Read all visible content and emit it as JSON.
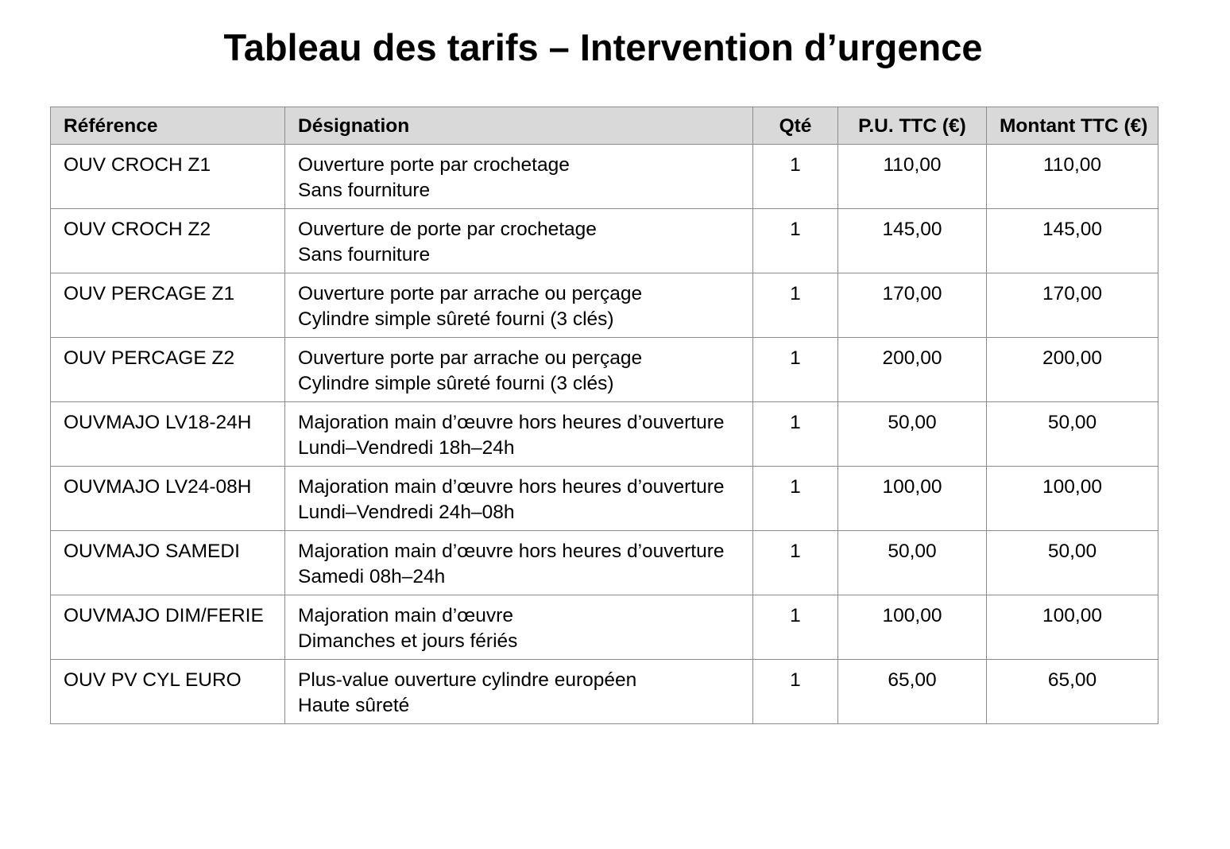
{
  "title": "Tableau des tarifs – Intervention d’urgence",
  "table": {
    "header": [
      "Référence",
      "Désignation",
      "Qté",
      "P.U. TTC (€)",
      "Montant TTC (€)"
    ],
    "rows": [
      [
        "OUV CROCH Z1",
        [
          "Ouverture porte par crochetage",
          "Sans fourniture"
        ],
        "1",
        "110,00",
        "110,00"
      ],
      [
        "OUV CROCH Z2",
        [
          "Ouverture de porte par crochetage",
          "Sans fourniture"
        ],
        "1",
        "145,00",
        "145,00"
      ],
      [
        "OUV PERCAGE Z1",
        [
          "Ouverture porte par arrache ou perçage",
          "Cylindre simple sûreté fourni (3 clés)"
        ],
        "1",
        "170,00",
        "170,00"
      ],
      [
        "OUV PERCAGE Z2",
        [
          "Ouverture porte par arrache ou perçage",
          "Cylindre simple sûreté fourni (3 clés)"
        ],
        "1",
        "200,00",
        "200,00"
      ],
      [
        "OUVMAJO LV18-24H",
        [
          "Majoration main d’œuvre hors heures d’ouverture",
          "Lundi–Vendredi 18h–24h"
        ],
        "1",
        "50,00",
        "50,00"
      ],
      [
        "OUVMAJO LV24-08H",
        [
          "Majoration main d’œuvre hors heures d’ouverture",
          "Lundi–Vendredi 24h–08h"
        ],
        "1",
        "100,00",
        "100,00"
      ],
      [
        "OUVMAJO SAMEDI",
        [
          "Majoration main d’œuvre hors heures d’ouverture",
          "Samedi 08h–24h"
        ],
        "1",
        "50,00",
        "50,00"
      ],
      [
        "OUVMAJO DIM/FERIE",
        [
          "Majoration main d’œuvre",
          "Dimanches et jours fériés"
        ],
        "1",
        "100,00",
        "100,00"
      ],
      [
        "OUV PV CYL EURO",
        [
          "Plus-value ouverture cylindre européen",
          "Haute sûreté"
        ],
        "1",
        "65,00",
        "65,00"
      ]
    ]
  }
}
